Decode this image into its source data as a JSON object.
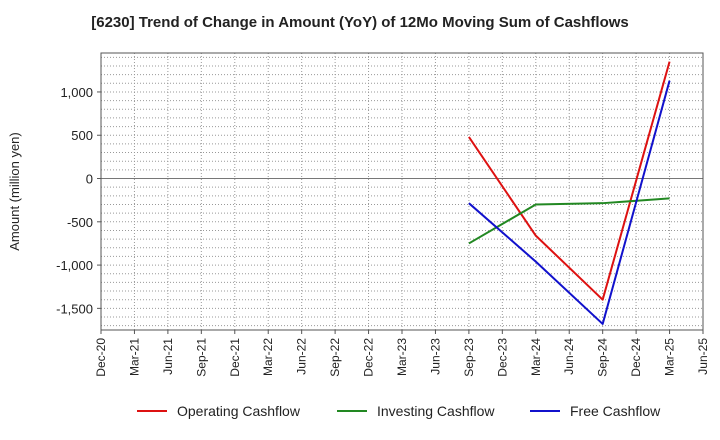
{
  "chart_data": {
    "type": "line",
    "title": "[6230]  Trend of Change in Amount (YoY) of 12Mo Moving Sum of Cashflows",
    "xlabel": "",
    "ylabel": "Amount (million yen)",
    "x_ticks": [
      "Dec-20",
      "Mar-21",
      "Jun-21",
      "Sep-21",
      "Dec-21",
      "Mar-22",
      "Jun-22",
      "Sep-22",
      "Dec-22",
      "Mar-23",
      "Jun-23",
      "Sep-23",
      "Dec-23",
      "Mar-24",
      "Jun-24",
      "Sep-24",
      "Dec-24",
      "Mar-25",
      "Jun-25"
    ],
    "y_ticks": [
      1000,
      500,
      0,
      -500,
      -1000,
      -1500
    ],
    "y_tick_labels": [
      "1,000",
      "500",
      "0",
      "-500",
      "-1,000",
      "-1,500"
    ],
    "ylim": [
      -1750,
      1450
    ],
    "grid": true,
    "legend_position": "bottom",
    "series": [
      {
        "name": "Operating Cashflow",
        "color": "#dd1111",
        "x": [
          "Sep-23",
          "Mar-24",
          "Sep-24",
          "Mar-25"
        ],
        "values": [
          480,
          -660,
          -1400,
          1350
        ]
      },
      {
        "name": "Investing Cashflow",
        "color": "#228822",
        "x": [
          "Sep-23",
          "Mar-24",
          "Sep-24",
          "Mar-25"
        ],
        "values": [
          -750,
          -300,
          -285,
          -230
        ]
      },
      {
        "name": "Free Cashflow",
        "color": "#1111cc",
        "x": [
          "Sep-23",
          "Mar-24",
          "Sep-24",
          "Mar-25"
        ],
        "values": [
          -285,
          -960,
          -1680,
          1130
        ]
      }
    ]
  }
}
